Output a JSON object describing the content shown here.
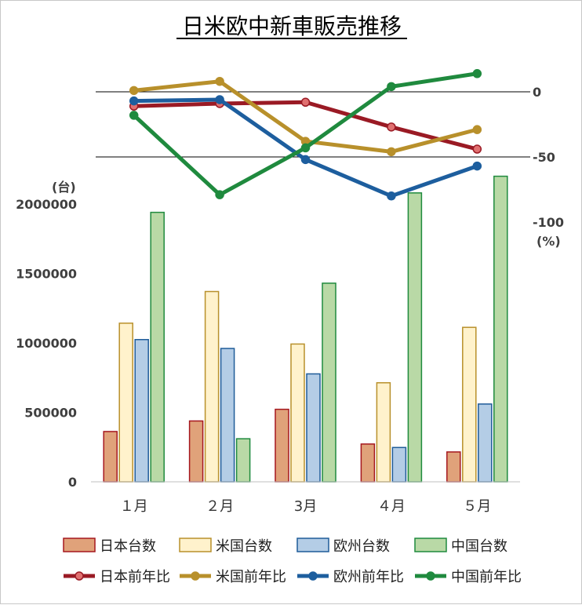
{
  "chart_data": {
    "type": "bar",
    "title": "日米欧中新車販売推移",
    "categories": [
      "１月",
      "２月",
      "3月",
      "４月",
      "５月"
    ],
    "y_left": {
      "unit_label": "(台)",
      "range": [
        0,
        2000000
      ],
      "ticks": [
        "0",
        "500000",
        "1000000",
        "1500000",
        "2000000"
      ],
      "tick_values": [
        0,
        500000,
        1000000,
        1500000,
        2000000
      ]
    },
    "y_right": {
      "unit_label": "(%)",
      "range": [
        -100,
        0
      ],
      "ticks": [
        "0",
        "-50",
        "-100"
      ],
      "tick_values": [
        0,
        -50,
        -100
      ]
    },
    "series": [
      {
        "name": "日本台数",
        "kind": "bar",
        "values": [
          362000,
          438000,
          522000,
          272000,
          215000
        ]
      },
      {
        "name": "米国台数",
        "kind": "bar",
        "values": [
          1142000,
          1370000,
          992000,
          713000,
          1112000
        ]
      },
      {
        "name": "欧州台数",
        "kind": "bar",
        "values": [
          1024000,
          960000,
          777000,
          247000,
          560000
        ]
      },
      {
        "name": "中国台数",
        "kind": "bar",
        "values": [
          1940000,
          310000,
          1430000,
          2080000,
          2200000
        ]
      },
      {
        "name": "日本前年比",
        "kind": "line",
        "values": [
          -11,
          -9,
          -8,
          -27,
          -44
        ]
      },
      {
        "name": "米国前年比",
        "kind": "line",
        "values": [
          1,
          8,
          -38,
          -46,
          -29
        ]
      },
      {
        "name": "欧州前年比",
        "kind": "line",
        "values": [
          -7,
          -6,
          -52,
          -80,
          -57
        ]
      },
      {
        "name": "中国前年比",
        "kind": "line",
        "values": [
          -18,
          -79,
          -43,
          4,
          14
        ]
      }
    ],
    "colors": {
      "日本台数": {
        "fill": "#e0a27a",
        "stroke": "#a5171e"
      },
      "米国台数": {
        "fill": "#fff2cc",
        "stroke": "#b8902b"
      },
      "欧州台数": {
        "fill": "#b4cde6",
        "stroke": "#1f5c99"
      },
      "中国台数": {
        "fill": "#b9d9a6",
        "stroke": "#1f8a3e"
      },
      "日本前年比": {
        "stroke": "#9a1a24",
        "marker": "#e07070"
      },
      "米国前年比": {
        "stroke": "#b8902b",
        "marker": "#b8902b"
      },
      "欧州前年比": {
        "stroke": "#1d5e9e",
        "marker": "#1d5e9e"
      },
      "中国前年比": {
        "stroke": "#1f8a3e",
        "marker": "#1f8a3e"
      }
    },
    "grid": false,
    "legend_position": "bottom"
  }
}
